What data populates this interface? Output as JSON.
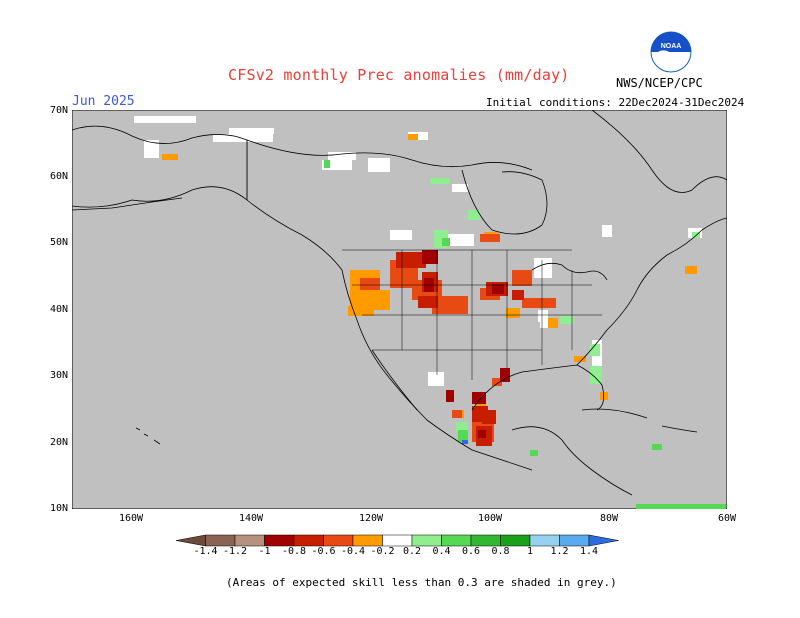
{
  "header": {
    "title": "CFSv2 monthly Prec anomalies (mm/day)",
    "month": "Jun 2025",
    "initial_conditions": "Initial conditions: 22Dec2024-31Dec2024",
    "agency": "NWS/NCEP/CPC",
    "logo_text": "NOAA"
  },
  "axes": {
    "lat_labels": [
      "70N",
      "60N",
      "50N",
      "40N",
      "30N",
      "20N",
      "10N"
    ],
    "lon_labels": [
      "160W",
      "140W",
      "120W",
      "100W",
      "80W",
      "60W"
    ]
  },
  "legend": {
    "labels": [
      "-1.4",
      "-1.2",
      "-1",
      "-0.8",
      "-0.6",
      "-0.4",
      "-0.2",
      "0.2",
      "0.4",
      "0.6",
      "0.8",
      "1",
      "1.2",
      "1.4"
    ],
    "colors": {
      "lt_-1.4": "#6b4a3a",
      "-1.4_-1.2": "#8b6355",
      "-1.2_-1": "#b89080",
      "-1_-0.8": "#a00000",
      "-0.8_-0.6": "#c81e00",
      "-0.6_-0.4": "#e84a14",
      "-0.4_-0.2": "#ff9a00",
      "-0.2_0.2": "#ffffff",
      "0.2_0.4": "#90ee90",
      "0.4_0.6": "#55d955",
      "0.6_0.8": "#30b830",
      "0.8_1": "#1aa01a",
      "1_1.2": "#96d2f0",
      "1.2_1.4": "#5aaaf0",
      "gt_1.4": "#2c6ce0"
    }
  },
  "map_colors": {
    "ocean_land_low_skill": "#c0c0c0",
    "coastline": "#000000"
  },
  "footnote": "(Areas of expected skill less than 0.3 are shaded in grey.)"
}
